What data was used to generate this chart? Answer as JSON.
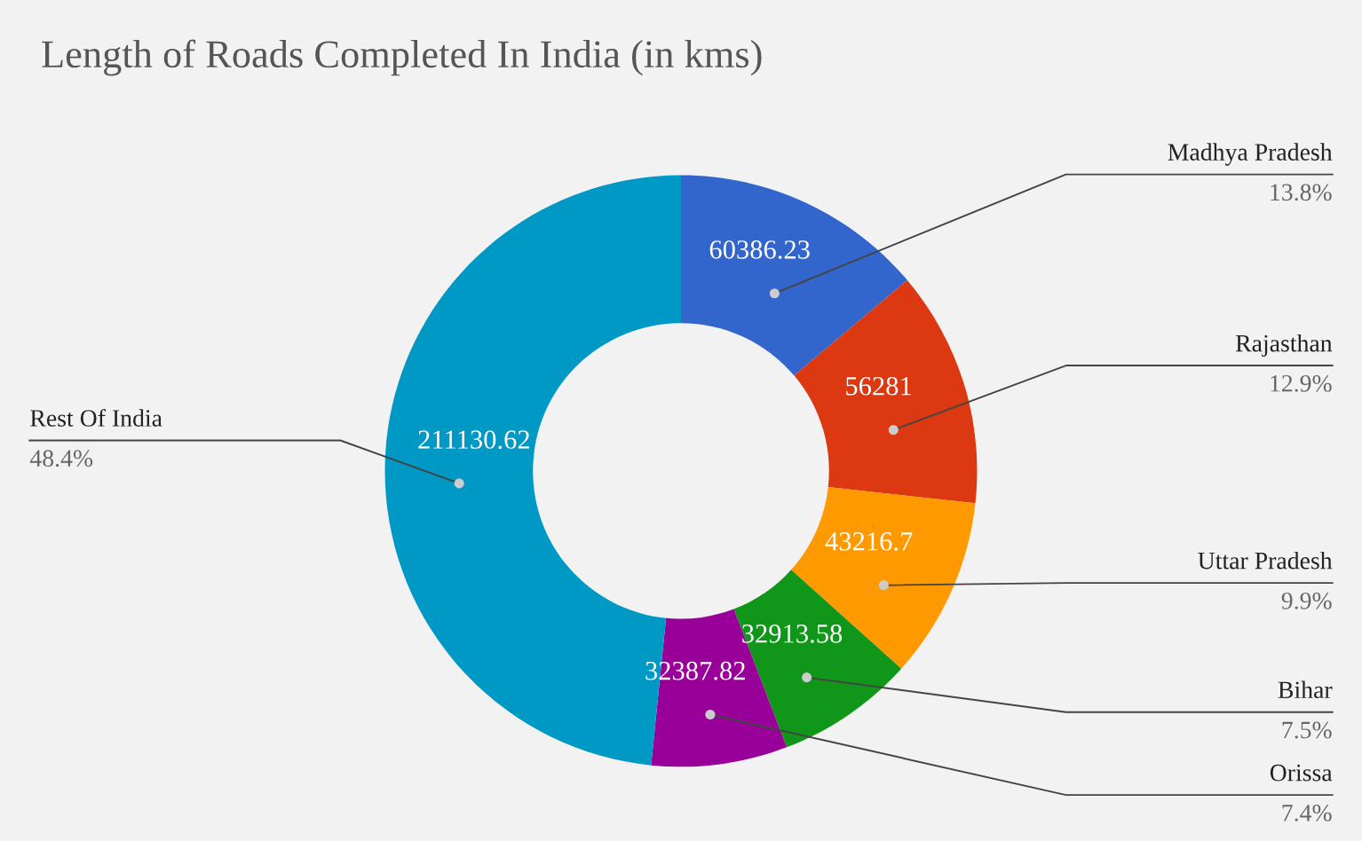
{
  "chart_data": {
    "type": "donut",
    "title": "Length of Roads Completed In India (in kms)",
    "categories": [
      "Madhya Pradesh",
      "Rajasthan",
      "Uttar Pradesh",
      "Bihar",
      "Orissa",
      "Rest Of India"
    ],
    "values": [
      60386.23,
      56281,
      43216.7,
      32913.58,
      32387.82,
      211130.62
    ],
    "colors": [
      "#3366cc",
      "#dc3912",
      "#ff9900",
      "#109618",
      "#990099",
      "#0099c6"
    ],
    "data_labels": true,
    "annotations": [
      "13.8%",
      "12.9%",
      "9.9%",
      "7.5%",
      "7.4%",
      "48.4%"
    ]
  }
}
